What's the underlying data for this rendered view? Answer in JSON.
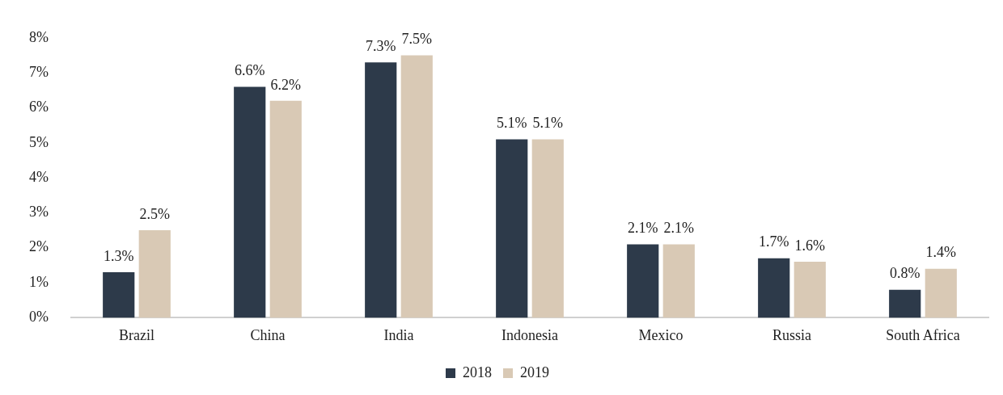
{
  "chart_data": {
    "type": "bar",
    "categories": [
      "Brazil",
      "China",
      "India",
      "Indonesia",
      "Mexico",
      "Russia",
      "South Africa"
    ],
    "series": [
      {
        "name": "2018",
        "color": "#2d3a4a",
        "values": [
          1.3,
          6.6,
          7.3,
          5.1,
          2.1,
          1.7,
          0.8
        ],
        "value_labels": [
          "1.3%",
          "6.6%",
          "7.3%",
          "5.1%",
          "2.1%",
          "1.7%",
          "0.8%"
        ]
      },
      {
        "name": "2019",
        "color": "#d9c9b5",
        "values": [
          2.5,
          6.2,
          7.5,
          5.1,
          2.1,
          1.6,
          1.4
        ],
        "value_labels": [
          "2.5%",
          "6.2%",
          "7.5%",
          "5.1%",
          "2.1%",
          "1.6%",
          "1.4%"
        ]
      }
    ],
    "ylim": [
      0,
      8
    ],
    "yticks": [
      {
        "value": 0,
        "label": "0%"
      },
      {
        "value": 1,
        "label": "1%"
      },
      {
        "value": 2,
        "label": "2%"
      },
      {
        "value": 3,
        "label": "3%"
      },
      {
        "value": 4,
        "label": "4%"
      },
      {
        "value": 5,
        "label": "5%"
      },
      {
        "value": 6,
        "label": "6%"
      },
      {
        "value": 7,
        "label": "7%"
      },
      {
        "value": 8,
        "label": "8%"
      }
    ],
    "grid": false,
    "legend": "bottom"
  }
}
